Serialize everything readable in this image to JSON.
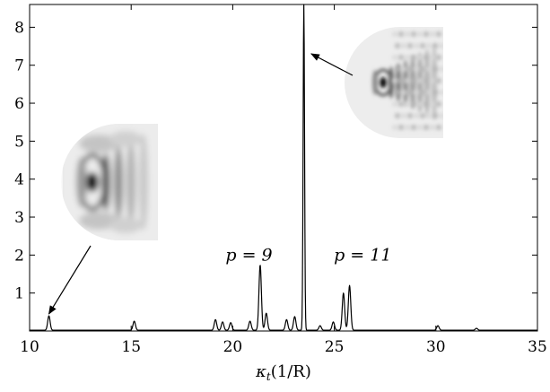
{
  "chart_data": {
    "type": "line",
    "title": "",
    "xlabel": "κt(1/R)",
    "xlabel_main": "κ",
    "xlabel_sub": "t",
    "xlabel_unit": "(1/R)",
    "xlim": [
      10,
      35
    ],
    "ylim": [
      0,
      8.6
    ],
    "x_ticks": [
      10,
      15,
      20,
      25,
      30,
      35
    ],
    "y_ticks": [
      1,
      2,
      3,
      4,
      5,
      6,
      7,
      8
    ],
    "grid": false,
    "legend": "none",
    "line_color": "#000000",
    "baseline": 0.02,
    "peaks": [
      {
        "x": 10.95,
        "y": 0.38
      },
      {
        "x": 15.15,
        "y": 0.24
      },
      {
        "x": 19.15,
        "y": 0.28
      },
      {
        "x": 19.5,
        "y": 0.22
      },
      {
        "x": 19.9,
        "y": 0.2
      },
      {
        "x": 20.85,
        "y": 0.24
      },
      {
        "x": 21.35,
        "y": 1.72
      },
      {
        "x": 21.65,
        "y": 0.45
      },
      {
        "x": 22.65,
        "y": 0.28
      },
      {
        "x": 23.05,
        "y": 0.36
      },
      {
        "x": 23.5,
        "y": 8.6
      },
      {
        "x": 24.3,
        "y": 0.12
      },
      {
        "x": 24.95,
        "y": 0.22
      },
      {
        "x": 25.45,
        "y": 0.98
      },
      {
        "x": 25.75,
        "y": 1.18
      },
      {
        "x": 30.1,
        "y": 0.12
      },
      {
        "x": 32.0,
        "y": 0.05
      }
    ],
    "annotations": [
      {
        "text": "p = 9",
        "x": 20.8,
        "y": 2.0
      },
      {
        "text": "p = 11",
        "x": 26.4,
        "y": 2.0
      }
    ],
    "insets": [
      {
        "name": "low-mode-pattern",
        "arrow_to": {
          "x": 10.95,
          "y": 0.45
        }
      },
      {
        "name": "high-mode-pattern",
        "arrow_to": {
          "x": 23.6,
          "y": 7.3
        }
      }
    ]
  }
}
